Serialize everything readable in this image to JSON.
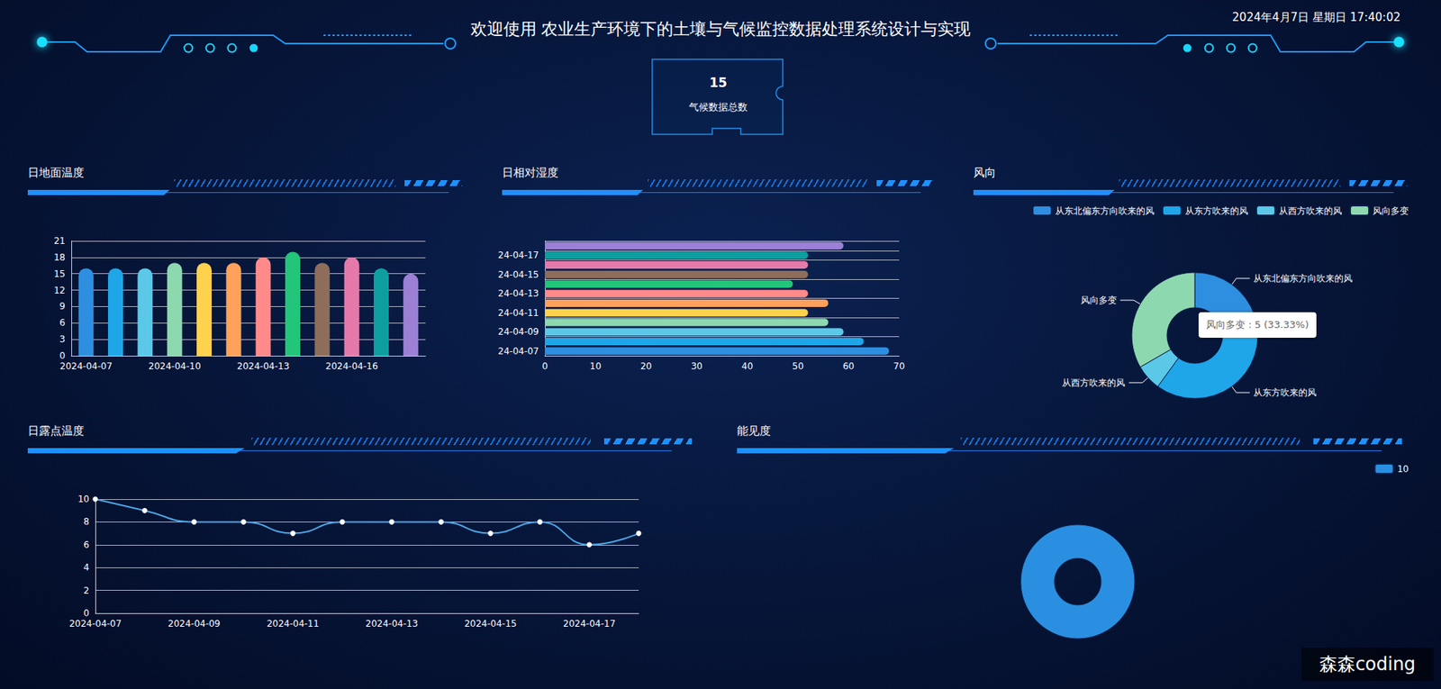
{
  "header": {
    "title": "欢迎使用 农业生产环境下的土壤与气候监控数据处理系统设计与实现",
    "datetime": "2024年4月7日 星期日 17:40:02"
  },
  "stat": {
    "value": 15,
    "label": "气候数据总数"
  },
  "watermark": "森森coding",
  "chart_data": [
    {
      "type": "bar",
      "title": "日地面温度",
      "categories": [
        "2024-04-07",
        null,
        null,
        "2024-04-10",
        null,
        null,
        "2024-04-13",
        null,
        null,
        "2024-04-16",
        null,
        null
      ],
      "values": [
        16,
        16,
        16,
        17,
        17,
        17,
        18,
        19,
        17,
        18,
        16,
        15
      ],
      "colors": [
        "#2e8fe0",
        "#1fa6e8",
        "#5bc8e8",
        "#8ed8b0",
        "#ffd24d",
        "#ffa15a",
        "#ff8a8a",
        "#22c57a",
        "#8e6e5a",
        "#e57aaa",
        "#0e9ea0",
        "#9b80d6"
      ],
      "ylim": [
        0,
        21
      ],
      "yticks": [
        0,
        3,
        6,
        9,
        12,
        15,
        18,
        21
      ],
      "grid": true
    },
    {
      "type": "bar",
      "title": "日相对湿度",
      "orientation": "horizontal",
      "categories": [
        "24-04-07",
        null,
        "24-04-09",
        null,
        "24-04-11",
        null,
        "24-04-13",
        null,
        "24-04-15",
        null,
        "24-04-17",
        null
      ],
      "values": [
        68,
        63,
        59,
        56,
        52,
        56,
        52,
        49,
        52,
        52,
        52,
        59
      ],
      "colors": [
        "#2e8fe0",
        "#1fa6e8",
        "#5bc8e8",
        "#8ed8b0",
        "#ffd24d",
        "#ffa15a",
        "#ff8a8a",
        "#22c57a",
        "#8e6e5a",
        "#e57aaa",
        "#0e9ea0",
        "#9b80d6"
      ],
      "xlim": [
        0,
        70
      ],
      "xticks": [
        0,
        10,
        20,
        30,
        40,
        50,
        60,
        70
      ],
      "grid": true
    },
    {
      "type": "pie",
      "title": "风向",
      "categories": [
        "从东北偏东方向吹来的风",
        "从东方吹来的风",
        "从西方吹来的风",
        "风向多变"
      ],
      "values": [
        3,
        6,
        1,
        5
      ],
      "colors": [
        "#2e8fe0",
        "#1fa6e8",
        "#5bc8e8",
        "#8ed8b0"
      ],
      "legend": "top-right",
      "annotations": [
        "风向多变 : 5 (33.33%)"
      ]
    },
    {
      "type": "line",
      "title": "日露点温度",
      "categories": [
        "2024-04-07",
        null,
        "2024-04-09",
        null,
        "2024-04-11",
        null,
        "2024-04-13",
        null,
        "2024-04-15",
        null,
        "2024-04-17",
        null
      ],
      "values": [
        10,
        9,
        8,
        8,
        7,
        8,
        8,
        8,
        7,
        8,
        6,
        7
      ],
      "color": "#4aa8e8",
      "marker": "circle",
      "line_style": "solid",
      "ylim": [
        0,
        10
      ],
      "yticks": [
        0,
        2,
        4,
        6,
        8,
        10
      ],
      "grid": true
    },
    {
      "type": "pie",
      "title": "能见度",
      "categories": [
        "10"
      ],
      "values": [
        15
      ],
      "colors": [
        "#2a8fe0"
      ],
      "legend": "top-right"
    }
  ]
}
